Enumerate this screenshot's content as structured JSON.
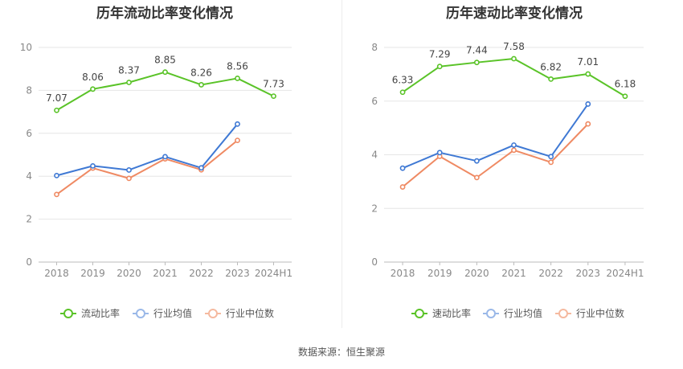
{
  "source": {
    "label": "数据来源：恒生聚源"
  },
  "colors": {
    "primary": "#5ac328",
    "avg": "#3f79d4",
    "median": "#ef8a63",
    "grid": "#e6e6e6",
    "axis": "#bbbbbb",
    "tick": "#888888"
  },
  "chart_data": [
    {
      "type": "line",
      "title": "历年流动比率变化情况",
      "categories": [
        "2018",
        "2019",
        "2020",
        "2021",
        "2022",
        "2023",
        "2024H1"
      ],
      "ylim": [
        0,
        10
      ],
      "yticks": [
        0,
        2,
        4,
        6,
        8,
        10
      ],
      "legend_position": "bottom",
      "series": [
        {
          "name": "流动比率",
          "values": [
            7.07,
            8.06,
            8.37,
            8.85,
            8.26,
            8.56,
            7.73
          ],
          "labels": [
            "7.07",
            "8.06",
            "8.37",
            "8.85",
            "8.26",
            "8.56",
            "7.73"
          ],
          "color": "#5ac328"
        },
        {
          "name": "行业均值",
          "values": [
            4.03,
            4.48,
            4.29,
            4.91,
            4.39,
            6.43,
            null
          ],
          "color": "#3f79d4"
        },
        {
          "name": "行业中位数",
          "values": [
            3.15,
            4.38,
            3.9,
            4.81,
            4.3,
            5.67,
            null
          ],
          "color": "#ef8a63"
        }
      ]
    },
    {
      "type": "line",
      "title": "历年速动比率变化情况",
      "categories": [
        "2018",
        "2019",
        "2020",
        "2021",
        "2022",
        "2023",
        "2024H1"
      ],
      "ylim": [
        0,
        8
      ],
      "yticks": [
        0,
        2,
        4,
        6,
        8
      ],
      "legend_position": "bottom",
      "series": [
        {
          "name": "速动比率",
          "values": [
            6.33,
            7.29,
            7.44,
            7.58,
            6.82,
            7.01,
            6.18
          ],
          "labels": [
            "6.33",
            "7.29",
            "7.44",
            "7.58",
            "6.82",
            "7.01",
            "6.18"
          ],
          "color": "#5ac328"
        },
        {
          "name": "行业均值",
          "values": [
            3.5,
            4.08,
            3.77,
            4.36,
            3.93,
            5.89,
            null
          ],
          "color": "#3f79d4"
        },
        {
          "name": "行业中位数",
          "values": [
            2.8,
            3.94,
            3.15,
            4.17,
            3.72,
            5.15,
            null
          ],
          "color": "#ef8a63"
        }
      ]
    }
  ]
}
